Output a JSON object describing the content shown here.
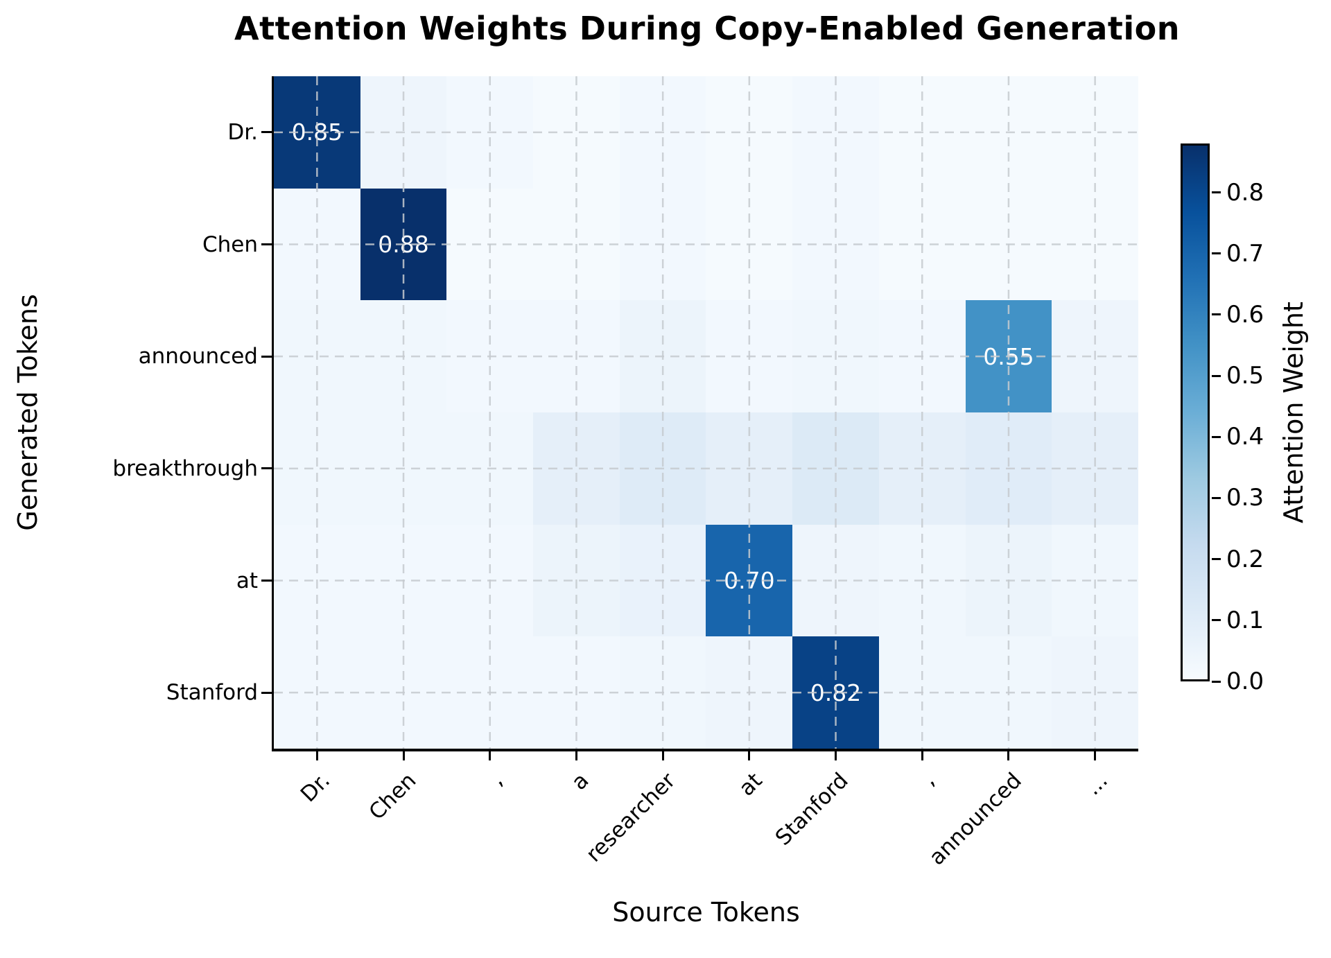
{
  "chart_data": {
    "type": "heatmap",
    "title": "Attention Weights During Copy-Enabled Generation",
    "xlabel": "Source Tokens",
    "ylabel": "Generated Tokens",
    "x_categories": [
      "Dr.",
      "Chen",
      ",",
      "a",
      "researcher",
      "at",
      "Stanford",
      ",",
      "announced",
      "..."
    ],
    "y_categories": [
      "Dr.",
      "Chen",
      "announced",
      "breakthrough",
      "at",
      "Stanford"
    ],
    "values": [
      [
        0.85,
        0.04,
        0.02,
        0.01,
        0.02,
        0.01,
        0.02,
        0.01,
        0.01,
        0.01
      ],
      [
        0.02,
        0.88,
        0.01,
        0.01,
        0.02,
        0.01,
        0.02,
        0.01,
        0.01,
        0.01
      ],
      [
        0.03,
        0.03,
        0.02,
        0.02,
        0.05,
        0.02,
        0.03,
        0.02,
        0.55,
        0.04
      ],
      [
        0.03,
        0.03,
        0.03,
        0.08,
        0.11,
        0.08,
        0.12,
        0.08,
        0.1,
        0.08
      ],
      [
        0.02,
        0.02,
        0.02,
        0.05,
        0.06,
        0.7,
        0.04,
        0.03,
        0.05,
        0.03
      ],
      [
        0.02,
        0.02,
        0.02,
        0.02,
        0.03,
        0.04,
        0.82,
        0.03,
        0.03,
        0.04
      ]
    ],
    "vmin": 0.0,
    "vmax": 0.88,
    "annotation_threshold": 0.5,
    "annotations": [
      {
        "row": "Dr.",
        "col": "Dr.",
        "label": "0.85"
      },
      {
        "row": "Chen",
        "col": "Chen",
        "label": "0.88"
      },
      {
        "row": "announced",
        "col": "announced",
        "label": "0.55"
      },
      {
        "row": "at",
        "col": "at",
        "label": "0.70"
      },
      {
        "row": "Stanford",
        "col": "Stanford",
        "label": "0.82"
      }
    ],
    "grid": {
      "visible": true,
      "style": "dashed",
      "color": "#c6cacf"
    },
    "colormap": {
      "name": "Blues",
      "stops": [
        [
          247,
          251,
          255
        ],
        [
          222,
          235,
          247
        ],
        [
          198,
          219,
          239
        ],
        [
          158,
          202,
          225
        ],
        [
          107,
          174,
          214
        ],
        [
          66,
          146,
          198
        ],
        [
          33,
          113,
          181
        ],
        [
          8,
          81,
          156
        ],
        [
          8,
          48,
          107
        ]
      ]
    },
    "colorbar": {
      "label": "Attention Weight",
      "ticks": [
        "0.0",
        "0.1",
        "0.2",
        "0.3",
        "0.4",
        "0.5",
        "0.6",
        "0.7",
        "0.8"
      ],
      "tick_values": [
        0.0,
        0.1,
        0.2,
        0.3,
        0.4,
        0.5,
        0.6,
        0.7,
        0.8
      ]
    },
    "annotation_text_color": "#ffffff",
    "spine_color": "#000000"
  }
}
